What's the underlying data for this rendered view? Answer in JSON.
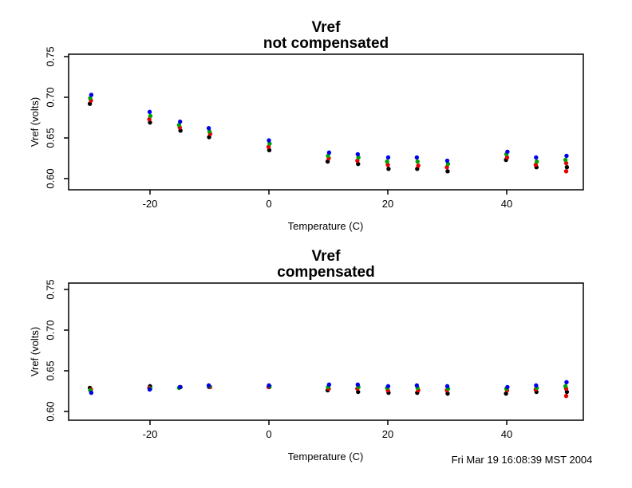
{
  "window": {
    "background": "#ffffff"
  },
  "footer": {
    "timestamp": "Fri Mar 19 16:08:39 MST 2004"
  },
  "palette": {
    "black": "#000000",
    "red": "#e60000",
    "green": "#00a000",
    "blue": "#0000ee"
  },
  "chart_data": [
    {
      "type": "scatter",
      "title": "Vref",
      "subtitle": "not compensated",
      "xlabel": "Temperature (C)",
      "ylabel": "Vref (volts)",
      "xlim": [
        -33.7,
        52.9
      ],
      "ylim": [
        0.586,
        0.753
      ],
      "x_ticks": [
        -20,
        0,
        20,
        40
      ],
      "x_tick_labels": [
        "-20",
        "0",
        "20",
        "40"
      ],
      "y_ticks": [
        0.6,
        0.65,
        0.7,
        0.75
      ],
      "y_tick_labels": [
        "0.60",
        "0.65",
        "0.70",
        "0.75"
      ],
      "grid": false,
      "legend": "none",
      "x": [
        -30,
        -20,
        -15,
        -10,
        0,
        10,
        15,
        20,
        25,
        30,
        40,
        45,
        50
      ],
      "series": [
        {
          "name": "black",
          "color": "#000000",
          "values": [
            0.692,
            0.669,
            0.659,
            0.651,
            0.635,
            0.621,
            0.618,
            0.612,
            0.612,
            0.609,
            0.623,
            0.614,
            0.614
          ]
        },
        {
          "name": "red",
          "color": "#e60000",
          "values": [
            0.696,
            0.673,
            0.663,
            0.655,
            0.639,
            0.625,
            0.622,
            0.617,
            0.616,
            0.614,
            0.626,
            0.617,
            0.619
          ]
        },
        {
          "name": "green",
          "color": "#00a000",
          "values": [
            0.699,
            0.677,
            0.666,
            0.658,
            0.643,
            0.628,
            0.626,
            0.621,
            0.621,
            0.618,
            0.63,
            0.621,
            0.623
          ]
        },
        {
          "name": "blue",
          "color": "#0000ee",
          "values": [
            0.703,
            0.682,
            0.67,
            0.662,
            0.647,
            0.632,
            0.63,
            0.626,
            0.626,
            0.622,
            0.633,
            0.626,
            0.628
          ]
        }
      ],
      "extra_points": [
        {
          "x": 50,
          "value": 0.609,
          "color": "#e60000"
        }
      ]
    },
    {
      "type": "scatter",
      "title": "Vref",
      "subtitle": "compensated",
      "xlabel": "Temperature (C)",
      "ylabel": "Vref (volts)",
      "xlim": [
        -33.7,
        52.9
      ],
      "ylim": [
        0.586,
        0.753
      ],
      "x_ticks": [
        -20,
        0,
        20,
        40
      ],
      "x_tick_labels": [
        "-20",
        "0",
        "20",
        "40"
      ],
      "y_ticks": [
        0.6,
        0.65,
        0.7,
        0.75
      ],
      "y_tick_labels": [
        "0.60",
        "0.65",
        "0.70",
        "0.75"
      ],
      "grid": false,
      "legend": "none",
      "x": [
        -30,
        -20,
        -15,
        -10,
        0,
        10,
        15,
        20,
        25,
        30,
        40,
        45,
        50
      ],
      "series": [
        {
          "name": "black",
          "color": "#000000",
          "values": [
            0.629,
            0.631,
            0.63,
            0.63,
            0.63,
            0.626,
            0.624,
            0.623,
            0.623,
            0.622,
            0.622,
            0.624,
            0.624
          ]
        },
        {
          "name": "red",
          "color": "#e60000",
          "values": [
            0.627,
            0.629,
            0.63,
            0.63,
            0.63,
            0.628,
            0.628,
            0.626,
            0.626,
            0.626,
            0.626,
            0.627,
            0.628
          ]
        },
        {
          "name": "green",
          "color": "#00a000",
          "values": [
            0.626,
            0.628,
            0.629,
            0.631,
            0.631,
            0.63,
            0.63,
            0.629,
            0.629,
            0.628,
            0.628,
            0.629,
            0.631
          ]
        },
        {
          "name": "blue",
          "color": "#0000ee",
          "values": [
            0.623,
            0.627,
            0.63,
            0.632,
            0.632,
            0.633,
            0.633,
            0.631,
            0.632,
            0.631,
            0.63,
            0.632,
            0.636
          ]
        }
      ],
      "extra_points": [
        {
          "x": 50,
          "value": 0.619,
          "color": "#e60000"
        }
      ]
    }
  ]
}
